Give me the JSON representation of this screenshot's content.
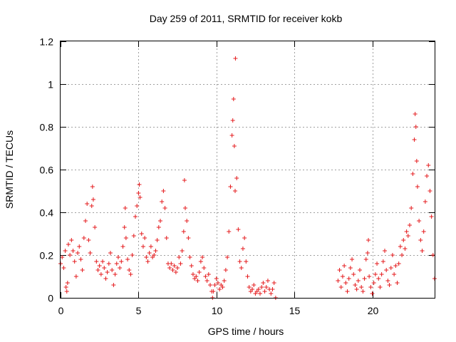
{
  "chart_data": {
    "type": "scatter",
    "title": "Day 259 of 2011, SRMTID for receiver kokb",
    "xlabel": "GPS time / hours",
    "ylabel": "SRMTID / TECUs",
    "xlim": [
      0,
      24
    ],
    "ylim": [
      0,
      1.2
    ],
    "x_ticks": [
      0,
      5,
      10,
      15,
      20
    ],
    "x_tick_labels": [
      "0",
      "5",
      "10",
      "15",
      "20"
    ],
    "y_ticks": [
      0,
      0.2,
      0.4,
      0.6,
      0.8,
      1,
      1.2
    ],
    "y_tick_labels": [
      "0",
      "0.2",
      "0.4",
      "0.6",
      "0.8",
      "1",
      "1.2"
    ],
    "grid": true,
    "marker": "+",
    "marker_color": "#e41a1c",
    "series": [
      {
        "name": "SRMTID",
        "points": [
          [
            0.0,
            0.16
          ],
          [
            0.1,
            0.19
          ],
          [
            0.2,
            0.14
          ],
          [
            0.3,
            0.22
          ],
          [
            0.35,
            0.05
          ],
          [
            0.4,
            0.03
          ],
          [
            0.45,
            0.07
          ],
          [
            0.5,
            0.25
          ],
          [
            0.6,
            0.2
          ],
          [
            0.7,
            0.27
          ],
          [
            0.8,
            0.22
          ],
          [
            0.9,
            0.17
          ],
          [
            1.0,
            0.1
          ],
          [
            1.1,
            0.21
          ],
          [
            1.2,
            0.24
          ],
          [
            1.3,
            0.18
          ],
          [
            1.4,
            0.13
          ],
          [
            1.5,
            0.28
          ],
          [
            1.6,
            0.36
          ],
          [
            1.7,
            0.44
          ],
          [
            1.8,
            0.27
          ],
          [
            1.9,
            0.21
          ],
          [
            2.0,
            0.43
          ],
          [
            2.05,
            0.52
          ],
          [
            2.1,
            0.46
          ],
          [
            2.2,
            0.33
          ],
          [
            2.3,
            0.17
          ],
          [
            2.4,
            0.13
          ],
          [
            2.5,
            0.15
          ],
          [
            2.6,
            0.11
          ],
          [
            2.7,
            0.17
          ],
          [
            2.8,
            0.14
          ],
          [
            2.9,
            0.09
          ],
          [
            3.0,
            0.12
          ],
          [
            3.1,
            0.16
          ],
          [
            3.2,
            0.21
          ],
          [
            3.3,
            0.13
          ],
          [
            3.4,
            0.06
          ],
          [
            3.5,
            0.11
          ],
          [
            3.6,
            0.16
          ],
          [
            3.7,
            0.19
          ],
          [
            3.8,
            0.14
          ],
          [
            3.9,
            0.17
          ],
          [
            4.0,
            0.24
          ],
          [
            4.1,
            0.33
          ],
          [
            4.15,
            0.42
          ],
          [
            4.2,
            0.28
          ],
          [
            4.3,
            0.18
          ],
          [
            4.4,
            0.13
          ],
          [
            4.5,
            0.11
          ],
          [
            4.6,
            0.2
          ],
          [
            4.7,
            0.29
          ],
          [
            4.8,
            0.38
          ],
          [
            4.9,
            0.43
          ],
          [
            5.0,
            0.49
          ],
          [
            5.05,
            0.53
          ],
          [
            5.1,
            0.47
          ],
          [
            5.2,
            0.3
          ],
          [
            5.3,
            0.24
          ],
          [
            5.4,
            0.28
          ],
          [
            5.5,
            0.19
          ],
          [
            5.6,
            0.17
          ],
          [
            5.7,
            0.21
          ],
          [
            5.8,
            0.24
          ],
          [
            5.9,
            0.19
          ],
          [
            6.0,
            0.2
          ],
          [
            6.1,
            0.22
          ],
          [
            6.2,
            0.27
          ],
          [
            6.3,
            0.33
          ],
          [
            6.4,
            0.36
          ],
          [
            6.5,
            0.45
          ],
          [
            6.6,
            0.5
          ],
          [
            6.7,
            0.42
          ],
          [
            6.8,
            0.28
          ],
          [
            6.9,
            0.16
          ],
          [
            7.0,
            0.14
          ],
          [
            7.1,
            0.16
          ],
          [
            7.2,
            0.13
          ],
          [
            7.3,
            0.15
          ],
          [
            7.4,
            0.12
          ],
          [
            7.5,
            0.14
          ],
          [
            7.6,
            0.19
          ],
          [
            7.7,
            0.16
          ],
          [
            7.8,
            0.22
          ],
          [
            7.9,
            0.31
          ],
          [
            7.95,
            0.55
          ],
          [
            8.0,
            0.42
          ],
          [
            8.1,
            0.36
          ],
          [
            8.2,
            0.28
          ],
          [
            8.3,
            0.19
          ],
          [
            8.4,
            0.15
          ],
          [
            8.5,
            0.11
          ],
          [
            8.6,
            0.09
          ],
          [
            8.7,
            0.1
          ],
          [
            8.8,
            0.08
          ],
          [
            8.9,
            0.12
          ],
          [
            9.0,
            0.17
          ],
          [
            9.1,
            0.19
          ],
          [
            9.2,
            0.14
          ],
          [
            9.3,
            0.1
          ],
          [
            9.4,
            0.08
          ],
          [
            9.5,
            0.11
          ],
          [
            9.6,
            0.06
          ],
          [
            9.7,
            0.03
          ],
          [
            9.75,
            0.0
          ],
          [
            9.8,
            0.03
          ],
          [
            9.9,
            0.06
          ],
          [
            10.0,
            0.09
          ],
          [
            10.1,
            0.07
          ],
          [
            10.2,
            0.04
          ],
          [
            10.3,
            0.06
          ],
          [
            10.4,
            0.05
          ],
          [
            10.5,
            0.08
          ],
          [
            10.6,
            0.13
          ],
          [
            10.7,
            0.19
          ],
          [
            10.8,
            0.31
          ],
          [
            10.9,
            0.52
          ],
          [
            11.0,
            0.76
          ],
          [
            11.05,
            0.83
          ],
          [
            11.1,
            0.93
          ],
          [
            11.15,
            0.71
          ],
          [
            11.2,
            0.5
          ],
          [
            11.22,
            1.12
          ],
          [
            11.3,
            0.56
          ],
          [
            11.4,
            0.32
          ],
          [
            11.5,
            0.17
          ],
          [
            11.6,
            0.14
          ],
          [
            11.7,
            0.23
          ],
          [
            11.8,
            0.28
          ],
          [
            11.9,
            0.17
          ],
          [
            12.0,
            0.1
          ],
          [
            12.1,
            0.05
          ],
          [
            12.2,
            0.03
          ],
          [
            12.3,
            0.04
          ],
          [
            12.4,
            0.06
          ],
          [
            12.5,
            0.02
          ],
          [
            12.6,
            0.03
          ],
          [
            12.7,
            0.04
          ],
          [
            12.8,
            0.02
          ],
          [
            12.9,
            0.05
          ],
          [
            13.0,
            0.07
          ],
          [
            13.1,
            0.03
          ],
          [
            13.2,
            0.05
          ],
          [
            13.3,
            0.08
          ],
          [
            13.4,
            0.04
          ],
          [
            13.5,
            0.02
          ],
          [
            13.6,
            0.04
          ],
          [
            13.7,
            0.07
          ],
          [
            13.8,
            0.0
          ],
          [
            17.8,
            0.08
          ],
          [
            17.9,
            0.13
          ],
          [
            18.0,
            0.05
          ],
          [
            18.1,
            0.1
          ],
          [
            18.2,
            0.15
          ],
          [
            18.3,
            0.07
          ],
          [
            18.4,
            0.03
          ],
          [
            18.5,
            0.09
          ],
          [
            18.6,
            0.14
          ],
          [
            18.7,
            0.18
          ],
          [
            18.8,
            0.11
          ],
          [
            18.9,
            0.06
          ],
          [
            19.0,
            0.04
          ],
          [
            19.1,
            0.08
          ],
          [
            19.2,
            0.13
          ],
          [
            19.3,
            0.05
          ],
          [
            19.4,
            0.03
          ],
          [
            19.5,
            0.09
          ],
          [
            19.6,
            0.18
          ],
          [
            19.7,
            0.21
          ],
          [
            19.75,
            0.27
          ],
          [
            19.8,
            0.1
          ],
          [
            19.9,
            0.05
          ],
          [
            20.0,
            0.02
          ],
          [
            20.1,
            0.07
          ],
          [
            20.2,
            0.11
          ],
          [
            20.3,
            0.16
          ],
          [
            20.4,
            0.09
          ],
          [
            20.5,
            0.05
          ],
          [
            20.6,
            0.11
          ],
          [
            20.7,
            0.17
          ],
          [
            20.8,
            0.22
          ],
          [
            20.9,
            0.13
          ],
          [
            21.0,
            0.08
          ],
          [
            21.1,
            0.06
          ],
          [
            21.2,
            0.14
          ],
          [
            21.3,
            0.2
          ],
          [
            21.4,
            0.11
          ],
          [
            21.5,
            0.15
          ],
          [
            21.6,
            0.07
          ],
          [
            21.7,
            0.16
          ],
          [
            21.8,
            0.24
          ],
          [
            21.9,
            0.2
          ],
          [
            22.0,
            0.27
          ],
          [
            22.1,
            0.23
          ],
          [
            22.2,
            0.31
          ],
          [
            22.3,
            0.29
          ],
          [
            22.4,
            0.34
          ],
          [
            22.5,
            0.42
          ],
          [
            22.6,
            0.58
          ],
          [
            22.7,
            0.74
          ],
          [
            22.75,
            0.86
          ],
          [
            22.8,
            0.8
          ],
          [
            22.85,
            0.64
          ],
          [
            22.9,
            0.52
          ],
          [
            23.0,
            0.36
          ],
          [
            23.1,
            0.27
          ],
          [
            23.2,
            0.22
          ],
          [
            23.3,
            0.31
          ],
          [
            23.4,
            0.45
          ],
          [
            23.5,
            0.57
          ],
          [
            23.6,
            0.62
          ],
          [
            23.7,
            0.5
          ],
          [
            23.8,
            0.38
          ],
          [
            23.9,
            0.2
          ],
          [
            24.0,
            0.09
          ]
        ]
      }
    ]
  }
}
